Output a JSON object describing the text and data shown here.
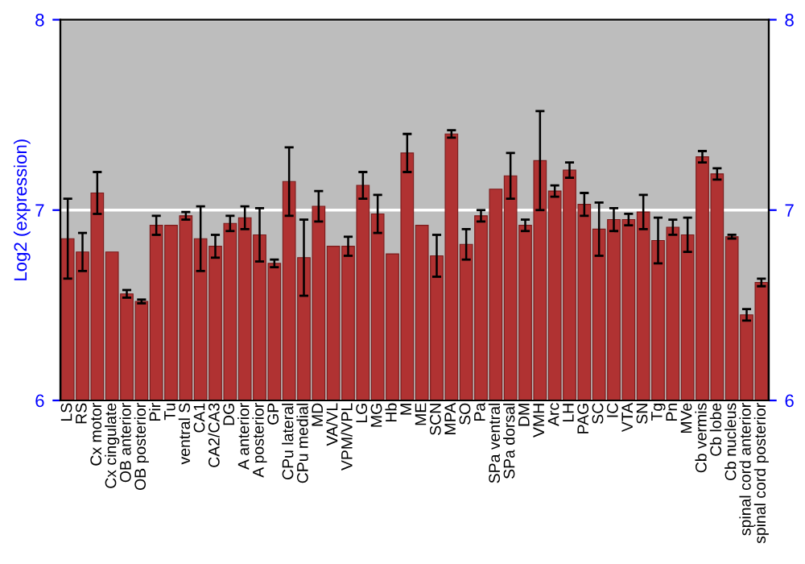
{
  "chart_data": {
    "type": "bar",
    "ylabel": "Log2 (expression)",
    "categories": [
      "LS",
      "RS",
      "Cx motor",
      "Cx cingulate",
      "OB anterior",
      "OB posterior",
      "Pir",
      "Tu",
      "ventral S",
      "CA1",
      "CA2/CA3",
      "DG",
      "A anterior",
      "A posterior",
      "GP",
      "CPu lateral",
      "CPu medial",
      "MD",
      "VA/VL",
      "VPM/VPL",
      "LG",
      "MG",
      "Hb",
      "M",
      "ME",
      "SCN",
      "MPA",
      "SO",
      "Pa",
      "SPa ventral",
      "SPa dorsal",
      "DM",
      "VMH",
      "Arc",
      "LH",
      "PAG",
      "SC",
      "IC",
      "VTA",
      "SN",
      "Tg",
      "Pn",
      "MVe",
      "Cb vermis",
      "Cb lobe",
      "Cb nucleus",
      "spinal cord anterior",
      "spinal cord posterior"
    ],
    "series": [
      {
        "color": "#b03232",
        "values": [
          6.85,
          6.78,
          7.09,
          6.78,
          6.56,
          6.52,
          6.92,
          6.92,
          6.97,
          6.85,
          6.81,
          6.93,
          6.96,
          6.87,
          6.72,
          7.15,
          6.75,
          7.02,
          6.81,
          6.81,
          7.13,
          6.98,
          6.77,
          7.3,
          6.92,
          6.76,
          7.4,
          6.82,
          6.97,
          7.11,
          7.18,
          6.92,
          7.26,
          7.1,
          7.21,
          7.03,
          6.9,
          6.95,
          6.95,
          6.99,
          6.84,
          6.91,
          6.87,
          7.28,
          7.19,
          6.86,
          6.45,
          6.62
        ],
        "errors": [
          0.21,
          0.1,
          0.11,
          null,
          0.02,
          0.01,
          0.05,
          null,
          0.02,
          0.17,
          0.06,
          0.04,
          0.06,
          0.14,
          0.02,
          0.18,
          0.2,
          0.08,
          null,
          0.05,
          0.07,
          0.1,
          null,
          0.1,
          null,
          0.11,
          0.02,
          0.08,
          0.03,
          null,
          0.12,
          0.03,
          0.26,
          0.03,
          0.04,
          0.06,
          0.14,
          0.06,
          0.03,
          0.09,
          0.12,
          0.04,
          0.09,
          0.03,
          0.03,
          0.01,
          0.03,
          0.02
        ]
      }
    ],
    "ylim": [
      6,
      8
    ],
    "yticks": [
      6,
      7,
      8
    ],
    "y2lim": [
      6,
      8
    ],
    "y2ticks": [
      6,
      7,
      8
    ],
    "grid": "y"
  }
}
